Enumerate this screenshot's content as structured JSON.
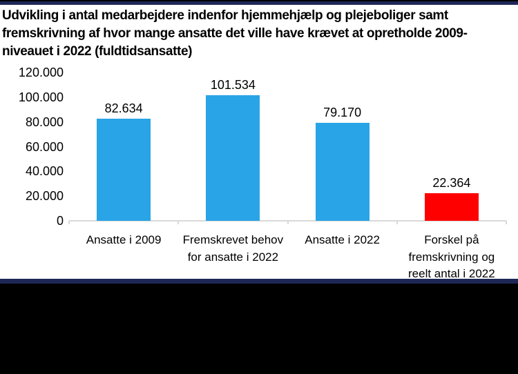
{
  "page": {
    "background_color": "#FFFFFF",
    "top_stripe_color": "#1F2756",
    "bottom_stripe_color": "#1F2756",
    "footer_color": "#000000"
  },
  "title": {
    "text": "Udvikling i antal medarbejdere indenfor hjemmehjælp og plejeboliger samt fremskrivning af hvor mange ansatte det ville have krævet at opretholde 2009-niveauet i 2022 (fuldtidsansatte)",
    "lines": [
      "Udvikling i antal medarbejdere indenfor hjemmehjælp og plejeboliger samt",
      "fremskrivning af hvor mange ansatte det ville have krævet at opretholde 2009-",
      "niveauet i 2022 (fuldtidsansatte)"
    ]
  },
  "chart_data": {
    "type": "bar",
    "title": "Udvikling i antal medarbejdere indenfor hjemmehjælp og plejeboliger samt fremskrivning af hvor mange ansatte det ville have krævet at opretholde 2009-niveauet i 2022 (fuldtidsansatte)",
    "categories": [
      "Ansatte i 2009",
      "Fremskrevet behov for ansatte i 2022",
      "Ansatte i 2022",
      "Forskel på fremskrivning og reelt antal i 2022"
    ],
    "category_lines": [
      [
        "Ansatte i 2009"
      ],
      [
        "Fremskrevet behov",
        "for ansatte i 2022"
      ],
      [
        "Ansatte i 2022"
      ],
      [
        "Forskel på",
        "fremskrivning og",
        "reelt antal i 2022"
      ]
    ],
    "values": [
      82634,
      101534,
      79170,
      22364
    ],
    "value_labels": [
      "82.634",
      "101.534",
      "79.170",
      "22.364"
    ],
    "bar_colors": [
      "#29A4E6",
      "#29A4E6",
      "#29A4E6",
      "#FF0000"
    ],
    "xlabel": "",
    "ylabel": "",
    "ylim": [
      0,
      120000
    ],
    "ytick_values": [
      0,
      20000,
      40000,
      60000,
      80000,
      100000,
      120000
    ],
    "ytick_labels": [
      "0",
      "20.000",
      "40.000",
      "60.000",
      "80.000",
      "100.000",
      "120.000"
    ],
    "grid": false,
    "legend": "none",
    "axis_line_color": "#D9D9D9"
  }
}
